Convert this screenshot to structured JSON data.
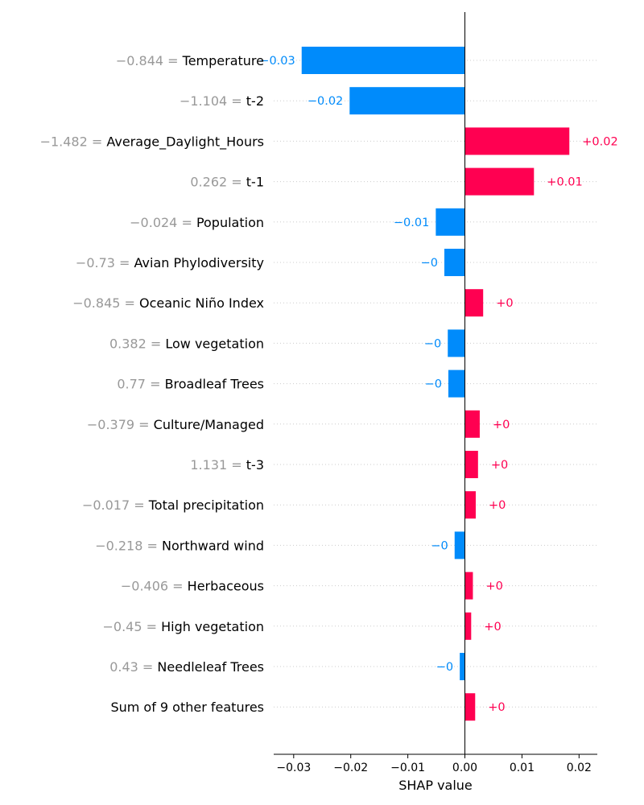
{
  "chart_data": {
    "type": "bar",
    "orientation": "horizontal",
    "xlabel": "SHAP value",
    "xlim": [
      -0.0335,
      0.0232
    ],
    "x_ticks": [
      -0.03,
      -0.02,
      -0.01,
      0.0,
      0.01,
      0.02
    ],
    "x_tick_labels": [
      "−0.03",
      "−0.02",
      "−0.01",
      "0.00",
      "0.01",
      "0.02"
    ],
    "grid": "horizontal dotted",
    "colors": {
      "positive": "#ff0051",
      "negative": "#008bfb",
      "feature_value": "#999999",
      "axis": "#000000",
      "grid": "#cccccc"
    },
    "rows": [
      {
        "feature_value": "−0.844 =",
        "feature": "Temperature",
        "shap": -0.0286,
        "label": "−0.03"
      },
      {
        "feature_value": "−1.104 =",
        "feature": "t-2",
        "shap": -0.0202,
        "label": "−0.02"
      },
      {
        "feature_value": "−1.482 =",
        "feature": "Average_Daylight_Hours",
        "shap": 0.0183,
        "label": "+0.02"
      },
      {
        "feature_value": "0.262 =",
        "feature": "t-1",
        "shap": 0.0121,
        "label": "+0.01"
      },
      {
        "feature_value": "−0.024 =",
        "feature": "Population",
        "shap": -0.0051,
        "label": "−0.01"
      },
      {
        "feature_value": "−0.73 =",
        "feature": "Avian Phylodiversity",
        "shap": -0.0036,
        "label": "−0"
      },
      {
        "feature_value": "−0.845 =",
        "feature": "Oceanic Niño Index",
        "shap": 0.0032,
        "label": "+0"
      },
      {
        "feature_value": "0.382 =",
        "feature": "Low vegetation",
        "shap": -0.003,
        "label": "−0"
      },
      {
        "feature_value": "0.77 =",
        "feature": "Broadleaf Trees",
        "shap": -0.0029,
        "label": "−0"
      },
      {
        "feature_value": "−0.379 =",
        "feature": "Culture/Managed",
        "shap": 0.0026,
        "label": "+0"
      },
      {
        "feature_value": "1.131 =",
        "feature": "t-3",
        "shap": 0.0023,
        "label": "+0"
      },
      {
        "feature_value": "−0.017 =",
        "feature": "Total precipitation",
        "shap": 0.0019,
        "label": "+0"
      },
      {
        "feature_value": "−0.218 =",
        "feature": "Northward wind",
        "shap": -0.0018,
        "label": "−0"
      },
      {
        "feature_value": "−0.406 =",
        "feature": "Herbaceous",
        "shap": 0.0014,
        "label": "+0"
      },
      {
        "feature_value": "−0.45 =",
        "feature": "High vegetation",
        "shap": 0.0011,
        "label": "+0"
      },
      {
        "feature_value": "0.43 =",
        "feature": "Needleleaf Trees",
        "shap": -0.0009,
        "label": "−0"
      },
      {
        "feature_value": "",
        "feature": "Sum of 9 other features",
        "shap": 0.0018,
        "label": "+0"
      }
    ]
  }
}
